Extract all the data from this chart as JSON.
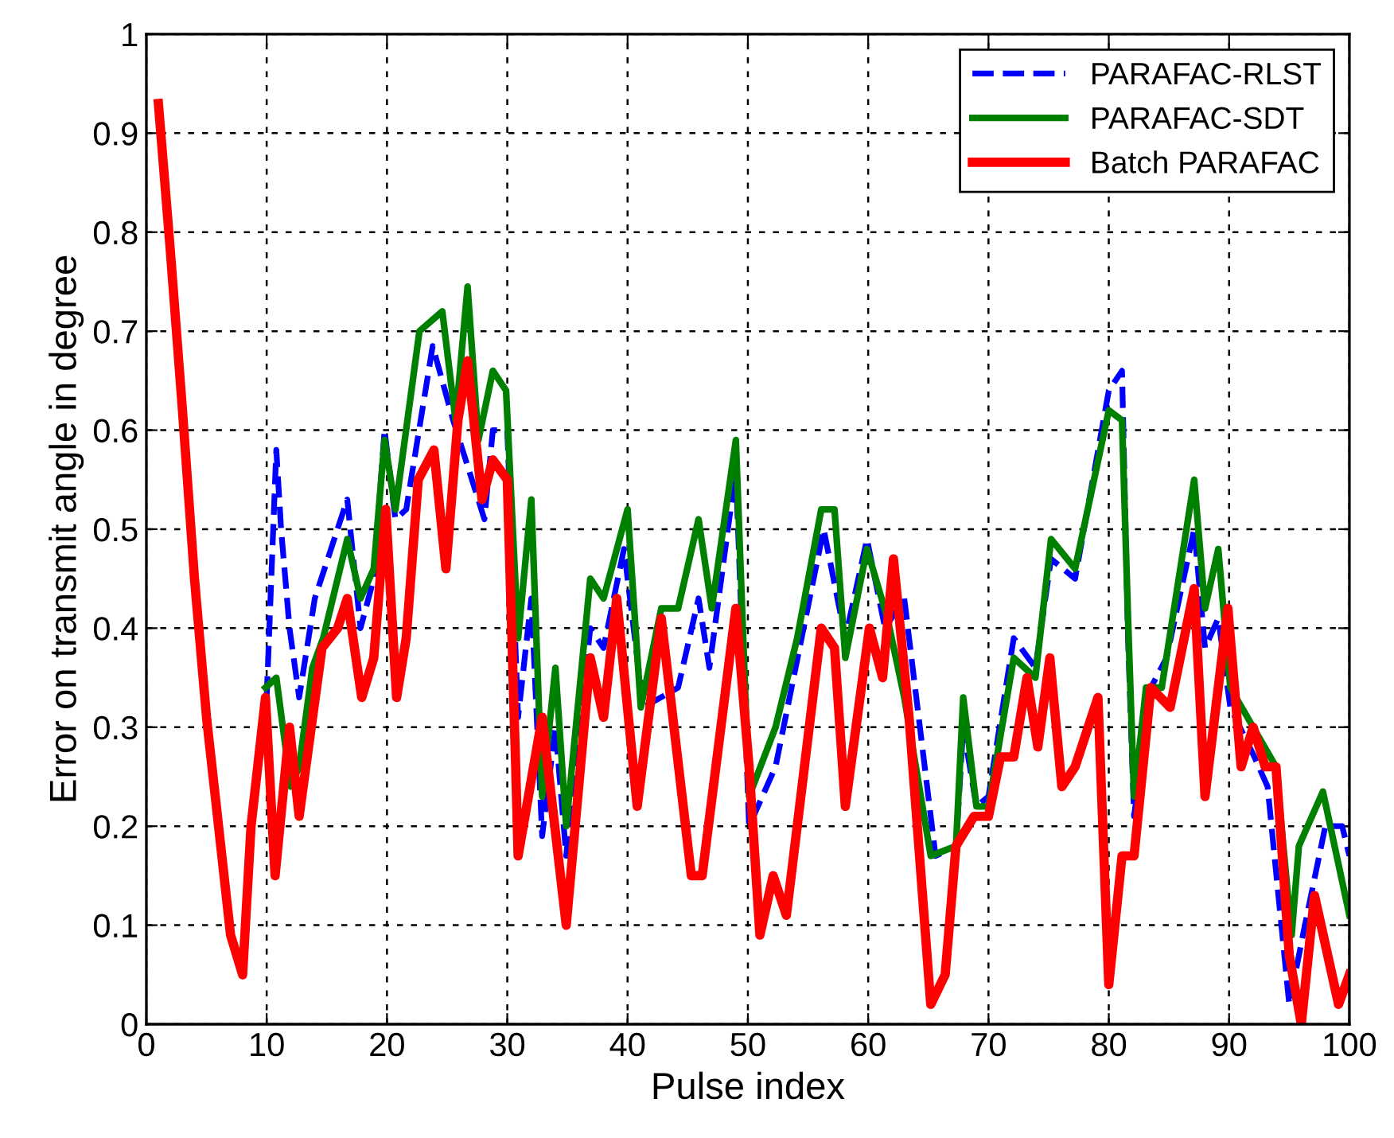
{
  "chart_data": {
    "type": "line",
    "xlabel": "Pulse index",
    "ylabel": "Error on transmit angle in degree",
    "xlim": [
      0,
      100
    ],
    "ylim": [
      0,
      1
    ],
    "xticks": [
      0,
      10,
      20,
      30,
      40,
      50,
      60,
      70,
      80,
      90,
      100
    ],
    "yticks": [
      0,
      0.1,
      0.2,
      0.3,
      0.4,
      0.5,
      0.6,
      0.7,
      0.8,
      0.9,
      1
    ],
    "grid": true,
    "legend": "top right",
    "marker": "none",
    "series": [
      {
        "name": "PARAFAC-RLST",
        "color": "#0000ff",
        "line_style": "dashed",
        "x": [
          10,
          10.8,
          11.2,
          11.9,
          12.7,
          14,
          16.7,
          17.8,
          18.9,
          19.8,
          20.7,
          21.6,
          23.8,
          25.5,
          28.1,
          28.8,
          30,
          30.9,
          32,
          32.9,
          34,
          34.9,
          36.9,
          38,
          39.7,
          41.3,
          44.2,
          45.9,
          46.8,
          49,
          50.1,
          52.3,
          56.3,
          58.1,
          59.9,
          61.4,
          63,
          65.6,
          67.3,
          67.9,
          69,
          70,
          72.1,
          73.9,
          75.2,
          77.2,
          80,
          81.1,
          81.6,
          82.1,
          83.5,
          84.8,
          87.1,
          88,
          89.1,
          90.1,
          92.1,
          93.2,
          95,
          96.3,
          98,
          99.4,
          100
        ],
        "values": [
          0.33,
          0.58,
          0.5,
          0.4,
          0.33,
          0.43,
          0.53,
          0.4,
          0.45,
          0.6,
          0.51,
          0.52,
          0.685,
          0.61,
          0.51,
          0.6,
          0.6,
          0.31,
          0.43,
          0.19,
          0.3,
          0.17,
          0.4,
          0.38,
          0.48,
          0.32,
          0.34,
          0.43,
          0.36,
          0.56,
          0.2,
          0.26,
          0.5,
          0.39,
          0.49,
          0.4,
          0.43,
          0.17,
          0.18,
          0.3,
          0.22,
          0.23,
          0.39,
          0.36,
          0.47,
          0.45,
          0.64,
          0.66,
          0.39,
          0.21,
          0.34,
          0.37,
          0.5,
          0.38,
          0.41,
          0.32,
          0.27,
          0.24,
          0.02,
          0.1,
          0.2,
          0.2,
          0.17
        ]
      },
      {
        "name": "PARAFAC-SDT",
        "color": "#008000",
        "line_style": "solid",
        "x": [
          9.9,
          10.8,
          12,
          12.7,
          13.8,
          14.7,
          16.7,
          17.8,
          18.9,
          19.8,
          20.7,
          22.7,
          24.6,
          25.7,
          26.7,
          27.6,
          28.8,
          29.9,
          30.9,
          32,
          32.9,
          34,
          34.9,
          36.9,
          38,
          40,
          41.1,
          42.8,
          44.2,
          45.9,
          47,
          49,
          50.1,
          52.3,
          54.1,
          56.1,
          57.2,
          58.1,
          59.9,
          61.6,
          63,
          65.2,
          67.3,
          67.9,
          69,
          70,
          72.1,
          73.9,
          75.2,
          77.2,
          80,
          81.1,
          81.6,
          82.1,
          83.1,
          84.4,
          87.1,
          88,
          89.1,
          90.1,
          93.9,
          95.2,
          95.8,
          97.8,
          100
        ],
        "values": [
          0.34,
          0.35,
          0.24,
          0.26,
          0.36,
          0.39,
          0.49,
          0.43,
          0.46,
          0.59,
          0.52,
          0.7,
          0.72,
          0.61,
          0.745,
          0.59,
          0.66,
          0.64,
          0.39,
          0.53,
          0.23,
          0.36,
          0.2,
          0.45,
          0.43,
          0.52,
          0.32,
          0.42,
          0.42,
          0.51,
          0.42,
          0.59,
          0.23,
          0.3,
          0.39,
          0.52,
          0.52,
          0.37,
          0.48,
          0.41,
          0.33,
          0.17,
          0.18,
          0.33,
          0.22,
          0.22,
          0.37,
          0.35,
          0.49,
          0.46,
          0.62,
          0.61,
          0.41,
          0.23,
          0.34,
          0.34,
          0.55,
          0.42,
          0.48,
          0.34,
          0.26,
          0.09,
          0.18,
          0.235,
          0.11
        ]
      },
      {
        "name": "Batch PARAFAC",
        "color": "#ff0000",
        "line_style": "solid",
        "x": [
          1,
          2,
          3,
          4,
          5,
          6,
          7,
          8,
          8.7,
          9.9,
          10.7,
          11.9,
          12.7,
          14.6,
          15.9,
          16.7,
          17.9,
          18.9,
          19.9,
          20.8,
          21.6,
          22.6,
          23.9,
          24.9,
          25.9,
          26.7,
          27.9,
          28.8,
          30,
          30.7,
          30.9,
          32.9,
          34.9,
          36.9,
          38,
          39.1,
          40.8,
          42.8,
          45.3,
          46.2,
          49,
          50.1,
          51,
          52.1,
          53.2,
          56.1,
          57.2,
          58.1,
          60.1,
          61.2,
          62.1,
          63.4,
          65.2,
          66.4,
          67.3,
          68.8,
          70,
          71,
          72.1,
          73.2,
          74.1,
          75.1,
          76.1,
          77.2,
          79.1,
          80,
          81.1,
          82.1,
          83.5,
          85.1,
          87.1,
          88,
          89.9,
          91,
          92,
          93,
          93.9,
          95,
          96,
          97.1,
          99.1,
          100
        ],
        "values": [
          0.93,
          0.78,
          0.62,
          0.45,
          0.31,
          0.2,
          0.09,
          0.05,
          0.2,
          0.33,
          0.15,
          0.3,
          0.21,
          0.38,
          0.4,
          0.43,
          0.33,
          0.37,
          0.52,
          0.33,
          0.39,
          0.55,
          0.58,
          0.46,
          0.61,
          0.67,
          0.53,
          0.57,
          0.55,
          0.26,
          0.17,
          0.31,
          0.1,
          0.37,
          0.31,
          0.43,
          0.22,
          0.41,
          0.15,
          0.15,
          0.42,
          0.26,
          0.09,
          0.15,
          0.11,
          0.4,
          0.38,
          0.22,
          0.4,
          0.35,
          0.47,
          0.31,
          0.02,
          0.05,
          0.18,
          0.21,
          0.21,
          0.27,
          0.27,
          0.35,
          0.28,
          0.37,
          0.24,
          0.26,
          0.33,
          0.04,
          0.17,
          0.17,
          0.34,
          0.32,
          0.44,
          0.23,
          0.42,
          0.26,
          0.3,
          0.26,
          0.26,
          0.07,
          0,
          0.13,
          0.02,
          0.05
        ]
      }
    ]
  }
}
